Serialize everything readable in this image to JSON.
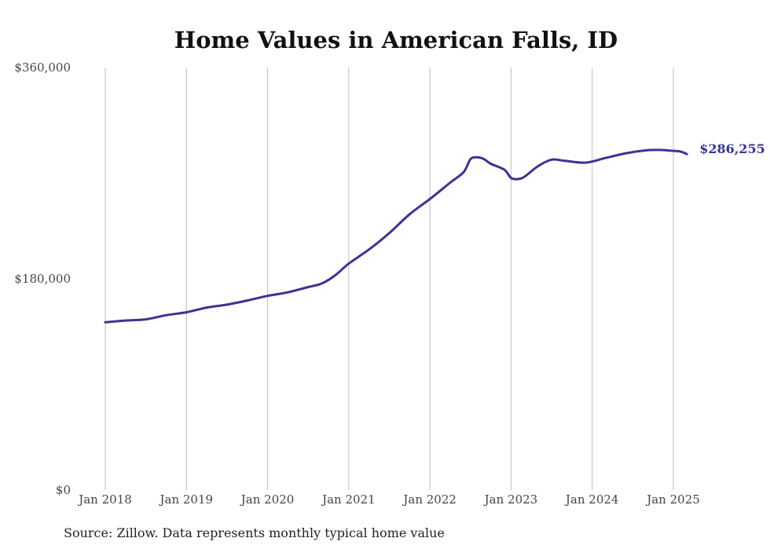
{
  "chart_data": {
    "type": "line",
    "title": "Home Values in American Falls, ID",
    "source_note": "Source: Zillow. Data represents monthly typical home value",
    "y_ticks": [
      "$360,000",
      "$180,000",
      "$0"
    ],
    "y_tick_values": [
      360000,
      180000,
      0
    ],
    "ylim": [
      0,
      360000
    ],
    "x_ticks": [
      "Jan 2018",
      "Jan 2019",
      "Jan 2020",
      "Jan 2021",
      "Jan 2022",
      "Jan 2023",
      "Jan 2024",
      "Jan 2025"
    ],
    "x_tick_values": [
      "2018-01",
      "2019-01",
      "2020-01",
      "2021-01",
      "2022-01",
      "2023-01",
      "2024-01",
      "2025-01"
    ],
    "xlim": [
      "2018-01",
      "2025-03"
    ],
    "grid": "vertical lines at January of each year",
    "line_color": "#3a3495",
    "end_label": "$286,255",
    "series": [
      {
        "points": [
          [
            "2018-01",
            143000
          ],
          [
            "2018-04",
            144500
          ],
          [
            "2018-07",
            145500
          ],
          [
            "2018-10",
            149000
          ],
          [
            "2019-01",
            151500
          ],
          [
            "2019-04",
            155500
          ],
          [
            "2019-07",
            158000
          ],
          [
            "2019-10",
            161500
          ],
          [
            "2020-01",
            165500
          ],
          [
            "2020-04",
            168500
          ],
          [
            "2020-07",
            173000
          ],
          [
            "2020-09",
            176000
          ],
          [
            "2020-11",
            183000
          ],
          [
            "2021-01",
            193000
          ],
          [
            "2021-04",
            205000
          ],
          [
            "2021-07",
            219000
          ],
          [
            "2021-10",
            235000
          ],
          [
            "2022-01",
            248000
          ],
          [
            "2022-04",
            262000
          ],
          [
            "2022-06",
            271000
          ],
          [
            "2022-07",
            282000
          ],
          [
            "2022-08",
            283500
          ],
          [
            "2022-09",
            282000
          ],
          [
            "2022-10",
            278000
          ],
          [
            "2022-12",
            273000
          ],
          [
            "2023-01",
            266000
          ],
          [
            "2023-02",
            265000
          ],
          [
            "2023-03",
            267000
          ],
          [
            "2023-05",
            276000
          ],
          [
            "2023-07",
            281500
          ],
          [
            "2023-09",
            280500
          ],
          [
            "2023-12",
            279000
          ],
          [
            "2024-03",
            283000
          ],
          [
            "2024-06",
            287000
          ],
          [
            "2024-09",
            289500
          ],
          [
            "2024-11",
            289800
          ],
          [
            "2025-01",
            289000
          ],
          [
            "2025-02",
            288500
          ],
          [
            "2025-03",
            286255
          ]
        ]
      }
    ]
  }
}
